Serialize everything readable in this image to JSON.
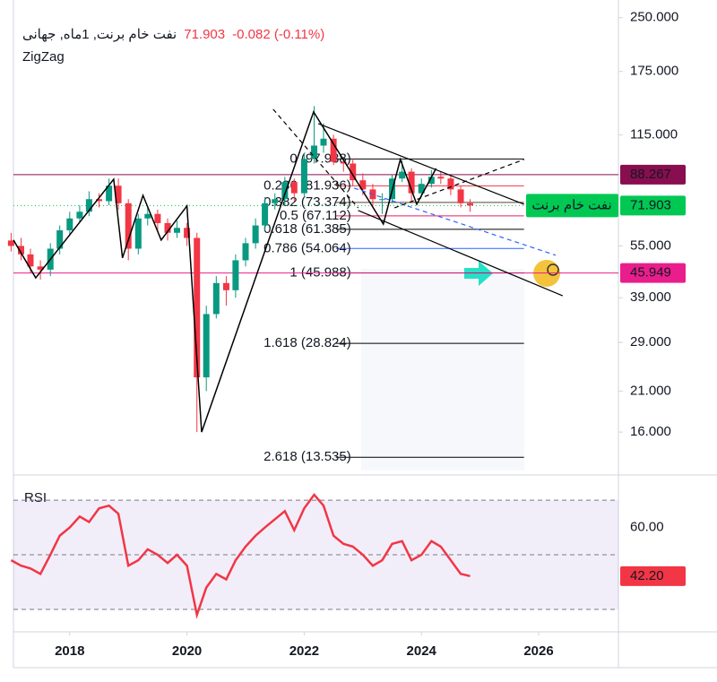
{
  "chart_data": {
    "type": "candlestick",
    "title": "نفت خام برنت, 1ماه, جهانی",
    "change_label": "-0.082 (-0.11%)",
    "indicator": "ZigZag",
    "series_name": "نفت خام برنت",
    "x": [
      2017,
      2017.17,
      2017.33,
      2017.5,
      2017.67,
      2017.83,
      2018,
      2018.17,
      2018.33,
      2018.5,
      2018.67,
      2018.83,
      2019,
      2019.17,
      2019.33,
      2019.5,
      2019.67,
      2019.83,
      2020,
      2020.17,
      2020.33,
      2020.5,
      2020.67,
      2020.83,
      2021,
      2021.17,
      2021.33,
      2021.5,
      2021.67,
      2021.83,
      2022,
      2022.17,
      2022.33,
      2022.5,
      2022.67,
      2022.83,
      2023,
      2023.17,
      2023.33,
      2023.5,
      2023.67,
      2023.83,
      2024,
      2024.17,
      2024.33,
      2024.5,
      2024.67,
      2024.83
    ],
    "open": [
      57,
      55,
      52,
      48,
      47,
      54,
      61,
      66,
      69,
      75,
      74,
      82,
      73,
      54,
      66,
      68,
      64,
      60,
      62,
      58,
      23,
      35,
      43,
      41,
      50,
      56,
      63,
      73,
      75,
      84,
      78,
      98,
      107,
      112,
      96,
      95,
      85,
      80,
      75,
      75,
      86,
      90,
      78,
      83,
      87,
      86,
      80,
      73
    ],
    "high": [
      60,
      58,
      54,
      50,
      56,
      63,
      69,
      72,
      79,
      78,
      86,
      86,
      75,
      68,
      71,
      70,
      66,
      65,
      64,
      60,
      37,
      45,
      45,
      52,
      58,
      66,
      76,
      78,
      87,
      86,
      102,
      139,
      124,
      115,
      98,
      98,
      89,
      83,
      78,
      88,
      97,
      92,
      86,
      91,
      90,
      88,
      82,
      75
    ],
    "low": [
      53,
      50,
      46,
      44,
      45,
      52,
      59,
      64,
      67,
      71,
      72,
      70,
      50,
      52,
      63,
      61,
      57,
      58,
      55,
      16,
      21,
      34,
      37,
      39,
      48,
      54,
      61,
      70,
      72,
      74,
      76,
      95,
      102,
      94,
      90,
      82,
      77,
      71,
      68,
      73,
      84,
      73,
      76,
      81,
      83,
      77,
      71,
      69
    ],
    "close": [
      55,
      52,
      48,
      47,
      54,
      61,
      66,
      69,
      75,
      74,
      82,
      73,
      54,
      66,
      68,
      64,
      60,
      62,
      58,
      23,
      35,
      43,
      41,
      50,
      56,
      63,
      73,
      75,
      84,
      78,
      98,
      107,
      112,
      96,
      95,
      85,
      80,
      75,
      75,
      86,
      90,
      78,
      83,
      87,
      86,
      80,
      73,
      71.903
    ],
    "up_color": "#089981",
    "down_color": "#f23645",
    "xlim": [
      2017.04,
      2027.36
    ],
    "xticks": [
      2018,
      2020,
      2022,
      2024,
      2026
    ],
    "ylim": [
      12.4,
      268
    ],
    "log_scale": true,
    "yticks": [
      {
        "value": 250,
        "label": "250.000"
      },
      {
        "value": 175,
        "label": "175.000"
      },
      {
        "value": 115,
        "label": "115.000"
      },
      {
        "value": 55,
        "label": "55.000"
      },
      {
        "value": 39,
        "label": "39.000"
      },
      {
        "value": 29,
        "label": "29.000"
      },
      {
        "value": 21,
        "label": "21.000"
      },
      {
        "value": 16,
        "label": "16.000"
      }
    ],
    "last_color": "#00c853",
    "hlines": [
      {
        "value": 88.267,
        "color": "#880e4f"
      },
      {
        "value": 45.949,
        "color": "#e91e8c"
      }
    ],
    "zigzag": {
      "color": "#000000",
      "x": [
        2017.04,
        2017.42,
        2018.75,
        2018.9,
        2019.25,
        2019.56,
        2020,
        2020.25,
        2022.16,
        2023.35,
        2023.64,
        2023.92,
        2024.25
      ],
      "y": [
        57.2,
        44.5,
        85.6,
        50.8,
        76.9,
        57.2,
        71.7,
        16,
        133.8,
        63.6,
        97.6,
        72.5,
        92
      ]
    },
    "trendlines": [
      {
        "x": [
          2022.24,
          2025.75
        ],
        "y": [
          123.8,
          72.5
        ],
        "color": "#000000",
        "dash": false
      },
      {
        "x": [
          2022.92,
          2026.41
        ],
        "y": [
          69.6,
          39.5
        ],
        "color": "#000000",
        "dash": false
      },
      {
        "x": [
          2022.85,
          2026.29
        ],
        "y": [
          80.7,
          51.7
        ],
        "color": "#2962ff",
        "dash": true
      },
      {
        "x": [
          2021.47,
          2022.92
        ],
        "y": [
          136.2,
          70.8
        ],
        "color": "#000000",
        "dash": true
      },
      {
        "x": [
          2023.54,
          2025.75
        ],
        "y": [
          70.8,
          97.6
        ],
        "color": "#000000",
        "dash": true
      }
    ],
    "fib": {
      "x": [
        2022.54,
        2025.75
      ],
      "levels": [
        {
          "label": "0 (97.938)",
          "value": 97.938,
          "color": "#000000"
        },
        {
          "label": "0.236 (81.936)",
          "value": 81.936,
          "color": "#f23645"
        },
        {
          "label": "0.382 (73.374)",
          "value": 73.374,
          "color": "#5d4037"
        },
        {
          "label": "0.5 (67.112)",
          "value": 67.112,
          "color": "#e91e63"
        },
        {
          "label": "0.618 (61.385)",
          "value": 61.385,
          "color": "#000000"
        },
        {
          "label": "0.786 (54.064)",
          "value": 54.064,
          "color": "#2962ff"
        },
        {
          "label": "1 (45.988)",
          "value": 45.988,
          "color": "#000000"
        },
        {
          "label": "1.618 (28.824)",
          "value": 28.824,
          "color": "#000000"
        },
        {
          "label": "2.618 (13.535)",
          "value": 13.535,
          "color": "#000000"
        }
      ]
    },
    "rsi": {
      "title": "RSI",
      "color": "#f23645",
      "ylim": [
        21.8,
        74.3
      ],
      "yticks": [
        {
          "value": 60,
          "label": "60.00"
        }
      ],
      "levels": [
        30,
        50,
        70
      ],
      "last_label": "42.20",
      "values": [
        48,
        46,
        45,
        43,
        50,
        57,
        60,
        64,
        62,
        67,
        68,
        65,
        46,
        48,
        52,
        50,
        47,
        50,
        46,
        28,
        38,
        43,
        41,
        48,
        53,
        57,
        60,
        63,
        66,
        59,
        67,
        72,
        68,
        57,
        54,
        53,
        50,
        46,
        48,
        54,
        55,
        48,
        50,
        55,
        53,
        48,
        43,
        42.2
      ]
    }
  }
}
